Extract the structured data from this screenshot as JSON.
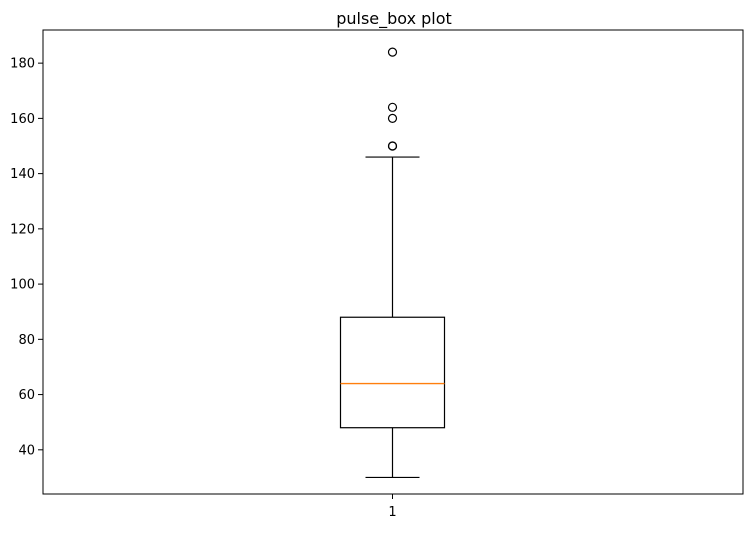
{
  "chart_data": {
    "type": "box",
    "title": "pulse_box plot",
    "xlabel": "",
    "ylabel": "",
    "categories": [
      "1"
    ],
    "ylim": [
      24,
      192
    ],
    "yticks": [
      40,
      60,
      80,
      100,
      120,
      140,
      160,
      180
    ],
    "series": [
      {
        "category": "1",
        "whisker_low": 30,
        "q1": 48,
        "median": 64,
        "q3": 88,
        "whisker_high": 146,
        "outliers": [
          150,
          150,
          160,
          164,
          184
        ]
      }
    ],
    "grid": false,
    "colors": {
      "box": "#000000",
      "median": "#ff7f0e",
      "outlier": "#000000",
      "axis": "#000000"
    }
  }
}
